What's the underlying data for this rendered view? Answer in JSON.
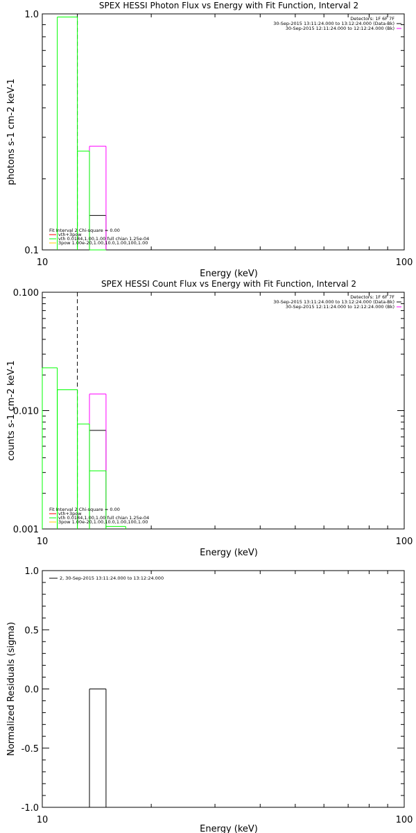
{
  "chart_data": [
    {
      "type": "line",
      "title": "SPEX HESSI Photon Flux vs Energy with Fit Function, Interval 2",
      "xlabel": "Energy (keV)",
      "ylabel": "photons s-1 cm-2 keV-1",
      "xscale": "log",
      "yscale": "log",
      "xlim": [
        10,
        100
      ],
      "ylim": [
        0.1,
        1.0
      ],
      "x_tick_labels": [
        "10",
        "100"
      ],
      "y_tick_labels": [
        "0.1",
        "1.0"
      ],
      "info_lines": [
        "Detectors: 1F 6F 7F",
        "30-Sep-2015 13:11:24.000 to 13:12:24.000 (Data-Bk)",
        "30-Sep-2015 12:11:24.000 to 12:12:24.000 (Bk)"
      ],
      "legend": {
        "header": "Fit Interval  2   Chi-square = 0.00",
        "entries": [
          {
            "label": "vth+3pow",
            "color": "#ff0000"
          },
          {
            "label": "vth 0.0184,1.00,1.00  full chian 1.25e-04",
            "color": "#00ff00"
          },
          {
            "label": "3pow 1.00e-20,1.00,10.0,1.00,100,1.00",
            "color": "#ffcc00"
          }
        ]
      },
      "vline_energy": 12.5,
      "series": [
        {
          "name": "Data-Bk",
          "color": "#000000",
          "bins": [
            [
              13.5,
              15.0,
              0.14
            ]
          ]
        },
        {
          "name": "Bk",
          "color": "#ff00ff",
          "bins": [
            [
              13.5,
              15.0,
              0.275
            ]
          ]
        },
        {
          "name": "vth",
          "color": "#00ff00",
          "bins": [
            [
              11.0,
              12.5,
              0.97
            ],
            [
              12.5,
              13.5,
              0.262
            ],
            [
              13.5,
              15.0,
              0.1
            ]
          ]
        }
      ]
    },
    {
      "type": "line",
      "title": "SPEX HESSI Count Flux vs Energy with Fit Function, Interval 2",
      "xlabel": "Energy (keV)",
      "ylabel": "counts s-1 cm-2 keV-1",
      "xscale": "log",
      "yscale": "log",
      "xlim": [
        10,
        100
      ],
      "ylim": [
        0.001,
        0.1
      ],
      "x_tick_labels": [
        "10",
        "100"
      ],
      "y_tick_labels": [
        "0.001",
        "0.010",
        "0.100"
      ],
      "info_lines": [
        "Detectors: 1F 6F 7F",
        "30-Sep-2015 13:11:24.000 to 13:12:24.000 (Data-Bk)",
        "30-Sep-2015 12:11:24.000 to 12:12:24.000 (Bk)"
      ],
      "legend": {
        "header": "Fit Interval  2   Chi-square = 0.00",
        "entries": [
          {
            "label": "vth+3pow",
            "color": "#ff0000"
          },
          {
            "label": "vth 0.0184,1.00,1.00  full chian 1.25e-04",
            "color": "#00ff00"
          },
          {
            "label": "3pow 1.00e-20,1.00,10.0,1.00,100,1.00",
            "color": "#ffcc00"
          }
        ]
      },
      "vline_energy": 12.5,
      "series": [
        {
          "name": "Data-Bk",
          "color": "#000000",
          "bins": [
            [
              13.5,
              15.0,
              0.0068
            ]
          ]
        },
        {
          "name": "Bk",
          "color": "#ff00ff",
          "bins": [
            [
              13.5,
              15.0,
              0.0138
            ]
          ]
        },
        {
          "name": "vth",
          "color": "#00ff00",
          "bins": [
            [
              10.0,
              11.0,
              0.023
            ],
            [
              11.0,
              12.5,
              0.015
            ],
            [
              12.5,
              13.5,
              0.0077
            ],
            [
              13.5,
              15.0,
              0.0031
            ],
            [
              15.0,
              17.0,
              0.00105
            ]
          ]
        }
      ]
    },
    {
      "type": "line",
      "title": "",
      "xlabel": "Energy (keV)",
      "ylabel": "Normalized Residuals (sigma)",
      "xscale": "log",
      "yscale": "linear",
      "xlim": [
        10,
        100
      ],
      "ylim": [
        -1.0,
        1.0
      ],
      "x_tick_labels": [
        "10",
        "100"
      ],
      "y_tick_labels": [
        "-1.0",
        "-0.5",
        "0.0",
        "0.5",
        "1.0"
      ],
      "legend": {
        "entries": [
          {
            "label": "2, 30-Sep-2015 13:11:24.000 to 13:12:24.000",
            "color": "#000000"
          }
        ]
      },
      "series": [
        {
          "name": "residuals",
          "color": "#000000",
          "bins": [
            [
              13.5,
              15.0,
              0.0
            ]
          ]
        }
      ]
    }
  ]
}
